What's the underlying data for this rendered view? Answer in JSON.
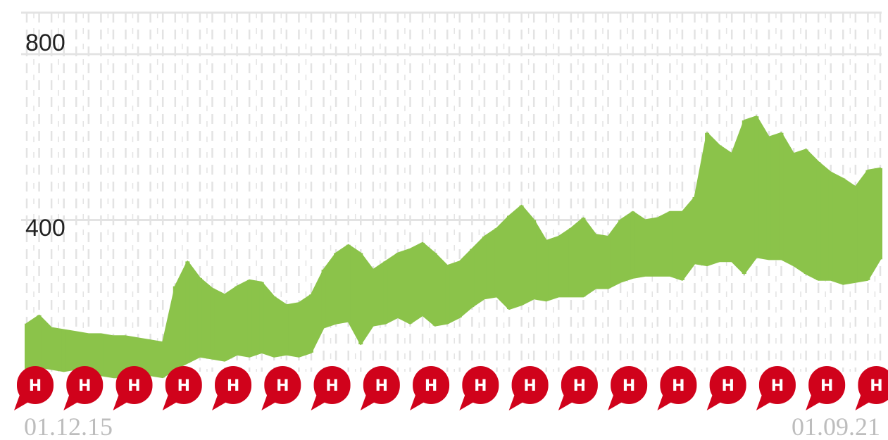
{
  "chart_data": {
    "type": "area",
    "title": "",
    "xlabel": "",
    "ylabel": "",
    "ylim": [
      0,
      900
    ],
    "y_ticks": [
      "800",
      "400"
    ],
    "x_tick_labels": [
      "01.12.15",
      "01.09.21"
    ],
    "grid": "horizontal gridlines at 400 and 800, dashed vertical gridlines",
    "colors": {
      "series": "#8bc34a",
      "marker": "#d0021b",
      "grid": "#e3e3e3",
      "xtick": "#bdbdbd"
    },
    "series": [
      {
        "x": [
          "2015-12",
          "2016-01",
          "2016-02",
          "2016-03",
          "2016-04",
          "2016-05",
          "2016-06",
          "2016-07",
          "2016-08",
          "2016-09",
          "2016-10",
          "2016-11",
          "2016-12",
          "2017-01",
          "2017-02",
          "2017-03",
          "2017-04",
          "2017-05",
          "2017-06",
          "2017-07",
          "2017-08",
          "2017-09",
          "2017-10",
          "2017-11",
          "2017-12",
          "2018-01",
          "2018-02",
          "2018-03",
          "2018-04",
          "2018-05",
          "2018-06",
          "2018-07",
          "2018-08",
          "2018-09",
          "2018-10",
          "2018-11",
          "2018-12",
          "2019-01",
          "2019-02",
          "2019-03",
          "2019-04",
          "2019-05",
          "2019-06",
          "2019-07",
          "2019-08",
          "2019-09",
          "2019-10",
          "2019-11",
          "2019-12",
          "2020-01",
          "2020-02",
          "2020-03",
          "2020-04",
          "2020-05",
          "2020-06",
          "2020-07",
          "2020-08",
          "2020-09",
          "2020-10",
          "2020-11",
          "2020-12",
          "2021-01",
          "2021-02",
          "2021-03",
          "2021-04",
          "2021-05",
          "2021-06",
          "2021-07",
          "2021-08",
          "2021-09"
        ],
        "high": [
          150,
          170,
          140,
          135,
          130,
          125,
          125,
          120,
          120,
          115,
          110,
          105,
          240,
          300,
          260,
          235,
          220,
          240,
          255,
          250,
          215,
          195,
          200,
          220,
          280,
          320,
          340,
          320,
          280,
          300,
          320,
          330,
          345,
          320,
          290,
          300,
          330,
          360,
          380,
          410,
          435,
          400,
          350,
          360,
          380,
          405,
          365,
          360,
          400,
          420,
          400,
          405,
          420,
          420,
          455,
          610,
          580,
          560,
          640,
          650,
          600,
          610,
          560,
          570,
          540,
          515,
          500,
          480,
          520,
          525
        ],
        "low": [
          40,
          45,
          40,
          35,
          40,
          30,
          25,
          20,
          20,
          20,
          25,
          20,
          40,
          55,
          70,
          65,
          60,
          75,
          70,
          80,
          70,
          75,
          70,
          80,
          140,
          150,
          155,
          100,
          145,
          150,
          165,
          150,
          170,
          145,
          150,
          165,
          190,
          210,
          215,
          185,
          195,
          210,
          205,
          215,
          215,
          215,
          235,
          235,
          250,
          260,
          265,
          265,
          265,
          255,
          295,
          290,
          300,
          300,
          270,
          310,
          305,
          305,
          290,
          270,
          255,
          255,
          245,
          250,
          255,
          305
        ]
      }
    ],
    "markers": {
      "label": "H",
      "positions": [
        "2015-12",
        "2016-04",
        "2016-08",
        "2016-12",
        "2017-04",
        "2017-08",
        "2017-12",
        "2018-04",
        "2018-08",
        "2018-12",
        "2019-04",
        "2019-08",
        "2019-12",
        "2020-04",
        "2020-08",
        "2020-12",
        "2021-04",
        "2021-08"
      ]
    }
  }
}
